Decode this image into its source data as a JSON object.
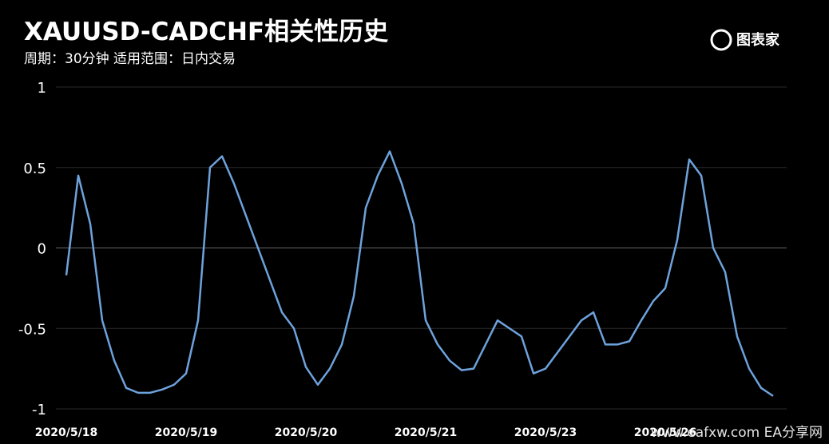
{
  "chart_data": {
    "type": "line",
    "title": "XAUUSD-CADCHF相关性历史",
    "subtitle": "周期：30分钟 适用范围：日内交易",
    "logo": "图表家",
    "watermark": "www.eafxw.com  EA分享网",
    "xlim": [
      0,
      59
    ],
    "xticks": [
      {
        "value": 0,
        "label": "2020/5/18"
      },
      {
        "value": 10,
        "label": "2020/5/19"
      },
      {
        "value": 20,
        "label": "2020/5/20"
      },
      {
        "value": 30,
        "label": "2020/5/21"
      },
      {
        "value": 40,
        "label": "2020/5/23"
      },
      {
        "value": 50,
        "label": "2020/5/26"
      }
    ],
    "ylim": [
      -1,
      1
    ],
    "yticks": [
      -1,
      -0.5,
      0,
      0.5,
      1
    ],
    "grid": true,
    "series": [
      {
        "color": "#6ea2dc",
        "x": [
          0,
          1,
          2,
          3,
          4,
          5,
          6,
          7,
          8,
          9,
          10,
          11,
          12,
          13,
          14,
          15,
          16,
          17,
          18,
          19,
          20,
          21,
          22,
          23,
          24,
          25,
          26,
          27,
          28,
          29,
          30,
          31,
          32,
          33,
          34,
          35,
          36,
          37,
          38,
          39,
          40,
          41,
          42,
          43,
          44,
          45,
          46,
          47,
          48,
          49,
          50,
          51,
          52,
          53,
          54,
          55,
          56,
          57,
          58,
          59
        ],
        "values": [
          -0.17,
          0.45,
          0.15,
          -0.45,
          -0.7,
          -0.87,
          -0.9,
          -0.9,
          -0.88,
          -0.85,
          -0.78,
          -0.45,
          0.5,
          0.57,
          0.4,
          0.2,
          0.0,
          -0.2,
          -0.4,
          -0.5,
          -0.74,
          -0.85,
          -0.75,
          -0.6,
          -0.3,
          0.25,
          0.45,
          0.6,
          0.4,
          0.15,
          -0.45,
          -0.6,
          -0.7,
          -0.76,
          -0.75,
          -0.6,
          -0.45,
          -0.5,
          -0.55,
          -0.78,
          -0.75,
          -0.65,
          -0.55,
          -0.45,
          -0.4,
          -0.6,
          -0.6,
          -0.58,
          -0.45,
          -0.33,
          -0.25,
          0.05,
          0.55,
          0.45,
          0.0,
          -0.15,
          -0.55,
          -0.75,
          -0.87,
          -0.92
        ]
      }
    ]
  }
}
